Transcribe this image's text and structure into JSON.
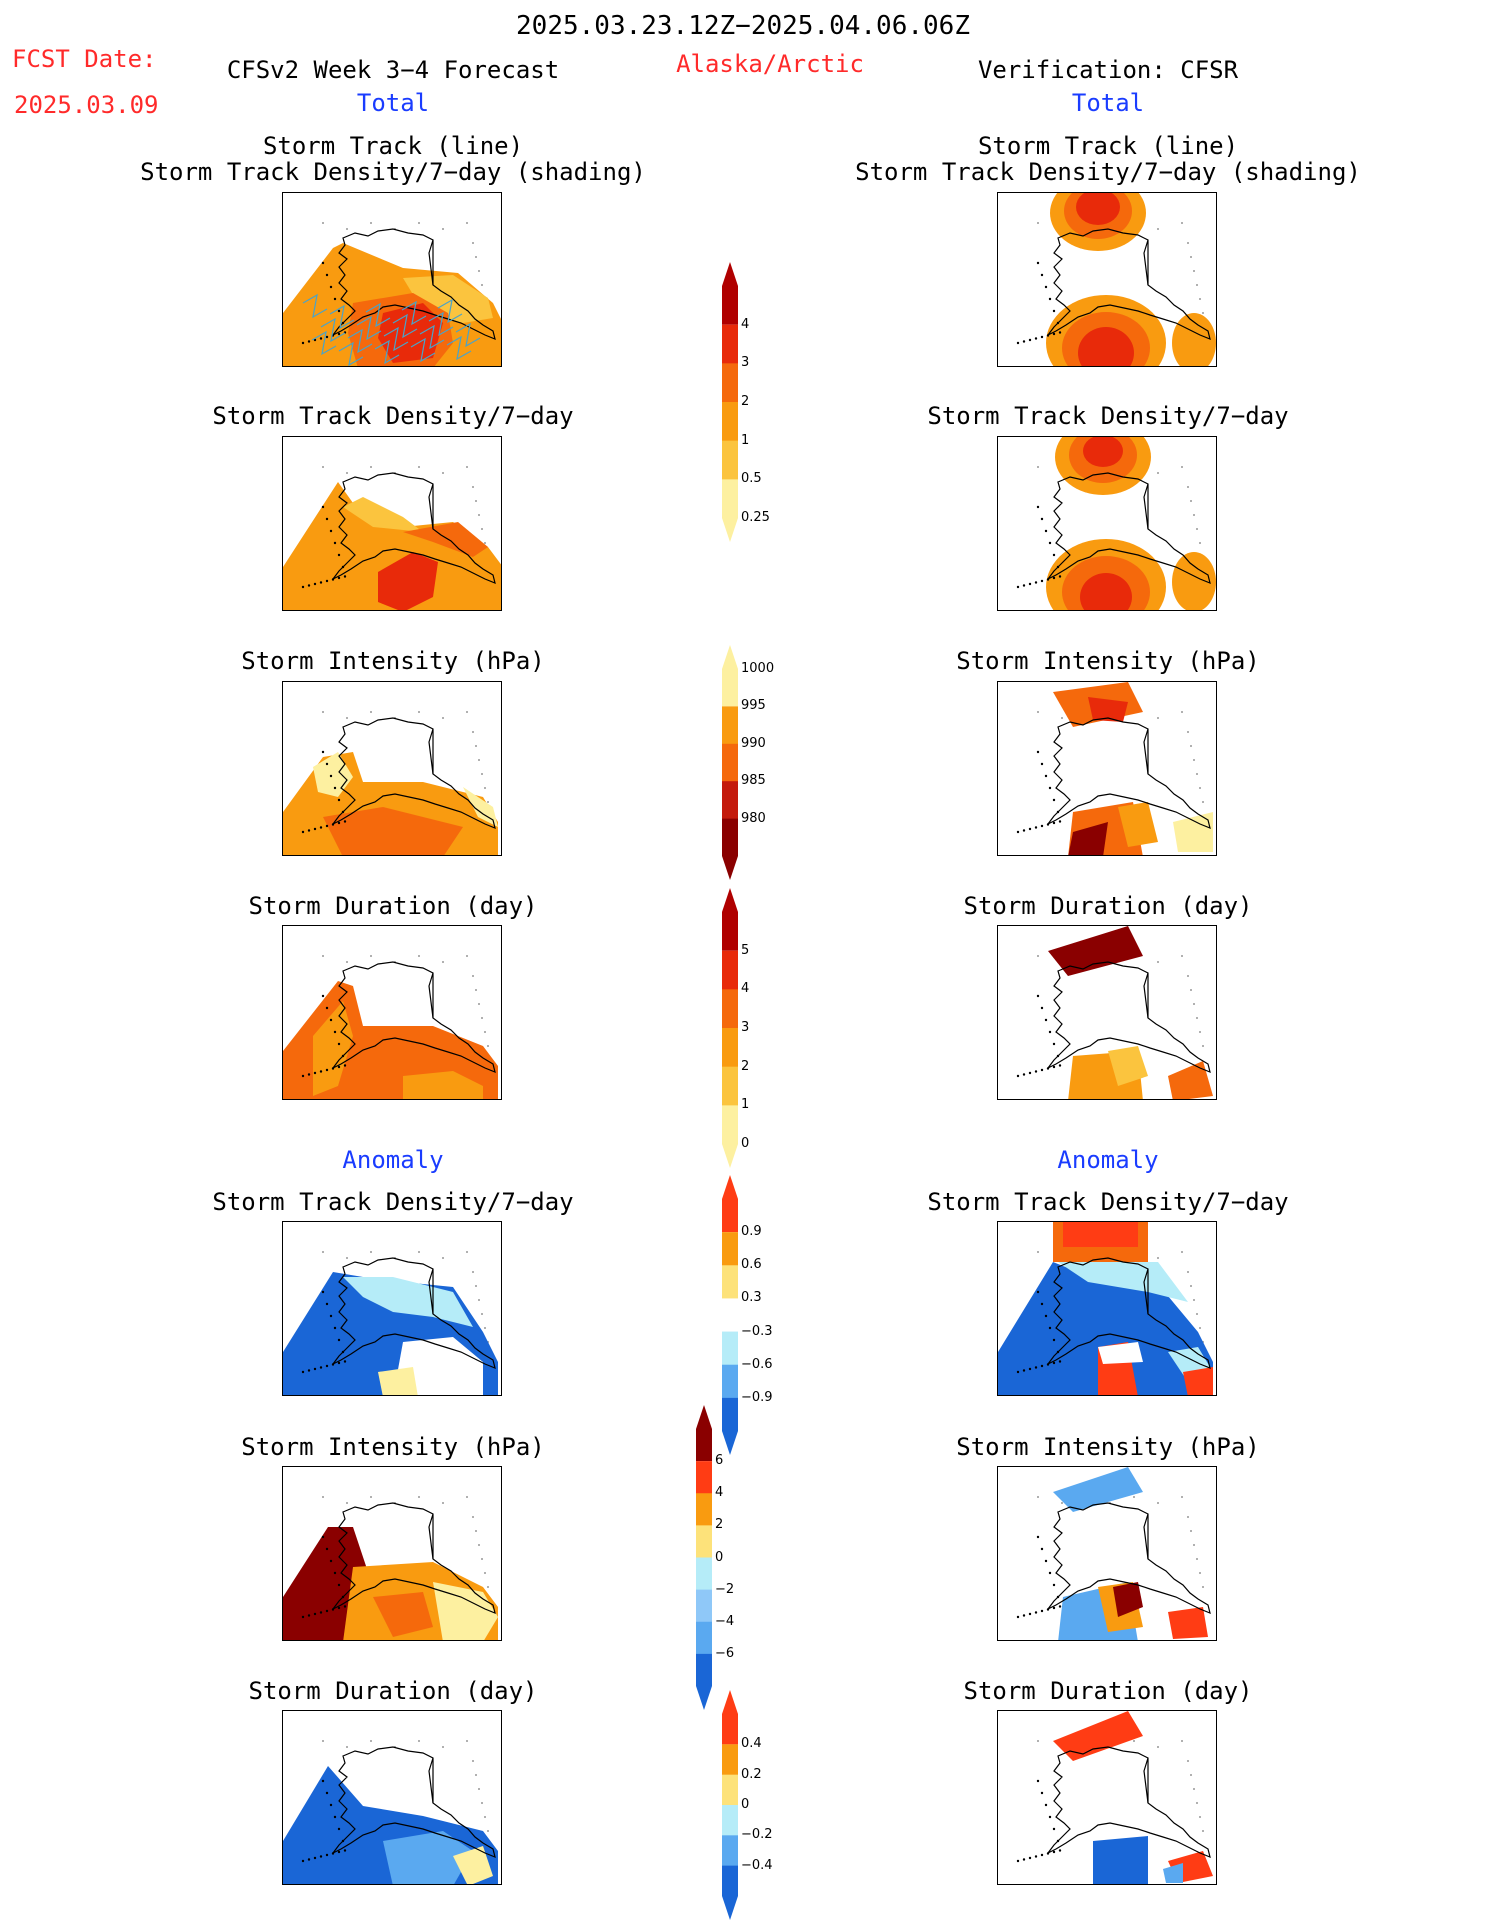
{
  "header": {
    "date_range": "2025.03.23.12Z−2025.04.06.06Z",
    "fcst_date_label": "FCST Date:",
    "fcst_date_value": "2025.03.09",
    "model_title": "CFSv2 Week 3−4 Forecast",
    "region": "Alaska/Arctic",
    "verification": "Verification: CFSR"
  },
  "sections": {
    "total_left": "Total",
    "total_right": "Total",
    "anomaly_left": "Anomaly",
    "anomaly_right": "Anomaly"
  },
  "panel_titles": {
    "track_line": "Storm Track (line)",
    "track_density_shading": "Storm Track Density/7−day (shading)",
    "track_density": "Storm Track Density/7−day",
    "intensity": "Storm Intensity (hPa)",
    "duration": "Storm Duration (day)"
  },
  "colorbars": {
    "density": {
      "labels": [
        "4",
        "3",
        "2",
        "1",
        "0.5",
        "0.25"
      ],
      "colors": [
        "#b00000",
        "#e82a0a",
        "#f5690c",
        "#f99b10",
        "#fbc43e",
        "#fdf0a0"
      ]
    },
    "intensity": {
      "labels": [
        "1000",
        "995",
        "990",
        "985",
        "980"
      ],
      "colors": [
        "#fdf0a0",
        "#f99b10",
        "#f5690c",
        "#c41a0c",
        "#8a0000"
      ]
    },
    "duration": {
      "labels": [
        "5",
        "4",
        "3",
        "2",
        "1",
        "0"
      ],
      "colors": [
        "#b00000",
        "#e82a0a",
        "#f5690c",
        "#f99b10",
        "#fbc43e",
        "#fdf0a0"
      ]
    },
    "density_anom": {
      "labels": [
        "0.9",
        "0.6",
        "0.3",
        "−0.3",
        "−0.6",
        "−0.9"
      ],
      "colors": [
        "#ff3c14",
        "#f99b10",
        "#fde27a",
        "#ffffff",
        "#b5ecf8",
        "#5aa9f0",
        "#1a66d6"
      ]
    },
    "intensity_anom": {
      "labels": [
        "6",
        "4",
        "2",
        "0",
        "−2",
        "−4",
        "−6"
      ],
      "colors": [
        "#8a0000",
        "#ff3c14",
        "#f99b10",
        "#fde27a",
        "#b5ecf8",
        "#8fc8f8",
        "#5aa9f0",
        "#1a66d6"
      ]
    },
    "duration_anom": {
      "labels": [
        "0.4",
        "0.2",
        "0",
        "−0.2",
        "−0.4"
      ],
      "colors": [
        "#ff3c14",
        "#f99b10",
        "#fde27a",
        "#b5ecf8",
        "#5aa9f0",
        "#1a66d6"
      ]
    }
  }
}
